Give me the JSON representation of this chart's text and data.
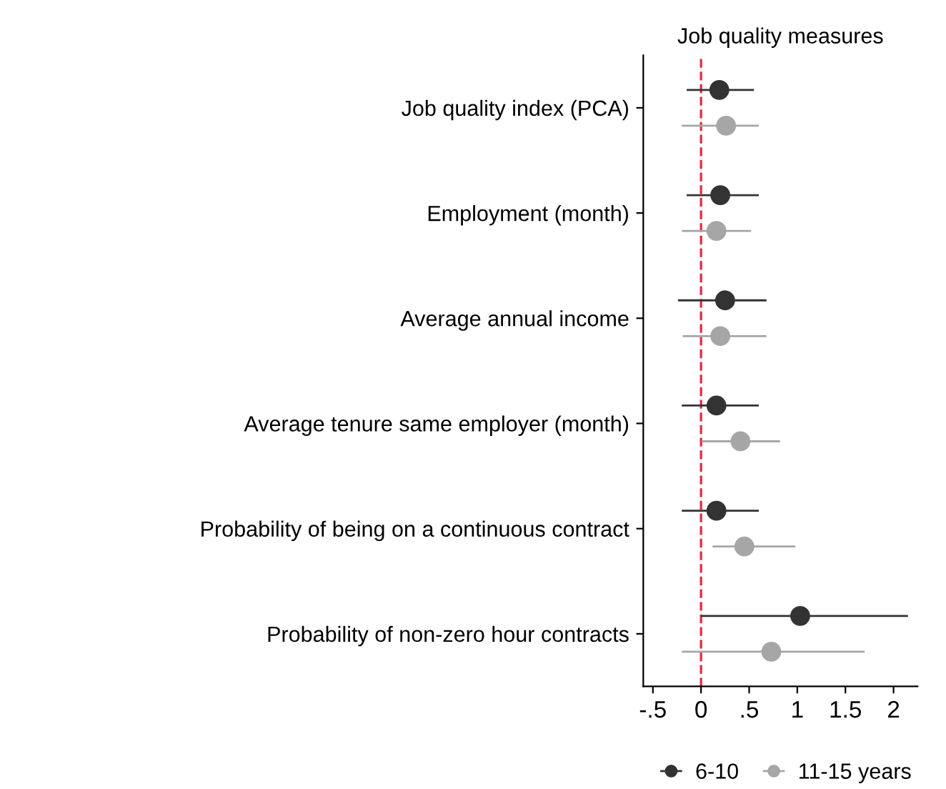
{
  "chart_data": {
    "type": "scatter",
    "orientation": "horizontal",
    "title": "Job quality measures",
    "categories": [
      "Job quality index (PCA)",
      "Employment (month)",
      "Average annual income",
      "Average tenure same employer (month)",
      "Probability of being on a continuous contract",
      "Probability of non-zero hour contracts"
    ],
    "series": [
      {
        "name": "6-10",
        "color": "#333333",
        "values": [
          0.19,
          0.2,
          0.25,
          0.16,
          0.16,
          1.03
        ],
        "errors": [
          [
            -0.15,
            0.55
          ],
          [
            -0.15,
            0.6
          ],
          [
            -0.24,
            0.68
          ],
          [
            -0.2,
            0.6
          ],
          [
            -0.2,
            0.6
          ],
          [
            0,
            2.15
          ]
        ]
      },
      {
        "name": "11-15 years",
        "color": "#a6a6a6",
        "values": [
          0.26,
          0.16,
          0.2,
          0.41,
          0.45,
          0.73
        ],
        "errors": [
          [
            -0.2,
            0.6
          ],
          [
            -0.2,
            0.52
          ],
          [
            -0.19,
            0.68
          ],
          [
            0.01,
            0.82
          ],
          [
            0.12,
            0.98
          ],
          [
            -0.2,
            1.7
          ]
        ]
      }
    ],
    "xlim": [
      -0.6,
      2.25
    ],
    "xticks": [
      {
        "value": -0.5,
        "label": "-.5"
      },
      0,
      {
        "value": 0.5,
        "label": ".5"
      },
      1,
      1.5,
      2
    ],
    "ref_lines": [
      {
        "axis": "x",
        "value": 0,
        "color": "#e0304a",
        "line_style": "dashed"
      }
    ],
    "marker": "circle",
    "legend": "bottom",
    "grid": false
  }
}
